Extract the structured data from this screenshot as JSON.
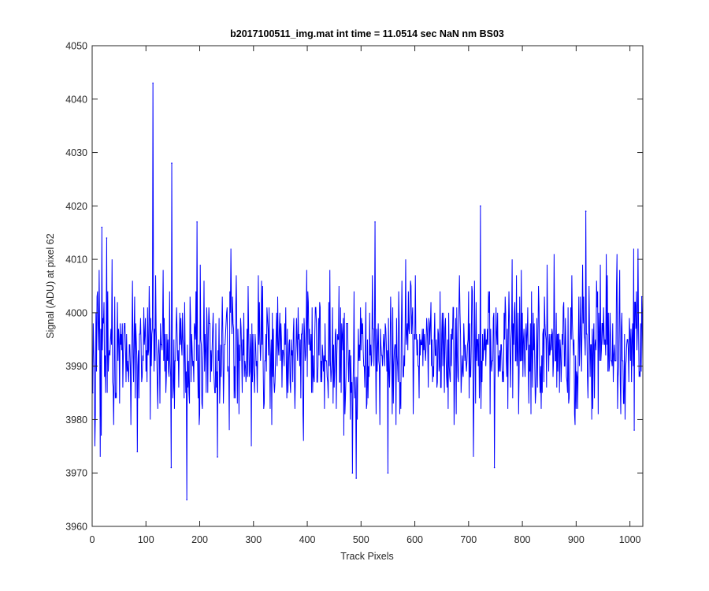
{
  "chart_data": {
    "type": "line",
    "title": "b2017100511_img.mat int time = 11.0514 sec  NaN nm BS03",
    "xlabel": "Track Pixels",
    "ylabel": "Signal (ADU) at pixel 62",
    "xlim": [
      0,
      1024
    ],
    "ylim": [
      3960,
      4050
    ],
    "xticks": [
      0,
      100,
      200,
      300,
      400,
      500,
      600,
      700,
      800,
      900,
      1000
    ],
    "yticks": [
      3960,
      3970,
      3980,
      3990,
      4000,
      4010,
      4020,
      4030,
      4040,
      4050
    ],
    "grid": false,
    "legend": "none",
    "series": [
      {
        "color": "#0000ff",
        "n_points": 1024,
        "baseline": 3993.5,
        "noise_sd": 6.5,
        "notable_points": [
          {
            "x": 1,
            "y": 3985
          },
          {
            "x": 18,
            "y": 4016
          },
          {
            "x": 27,
            "y": 4014
          },
          {
            "x": 84,
            "y": 3974
          },
          {
            "x": 113,
            "y": 4043
          },
          {
            "x": 148,
            "y": 4028
          },
          {
            "x": 147,
            "y": 3971
          },
          {
            "x": 176,
            "y": 3965
          },
          {
            "x": 195,
            "y": 4017
          },
          {
            "x": 233,
            "y": 3973
          },
          {
            "x": 484,
            "y": 3970
          },
          {
            "x": 491,
            "y": 3969
          },
          {
            "x": 526,
            "y": 4017
          },
          {
            "x": 550,
            "y": 3970
          },
          {
            "x": 722,
            "y": 4020
          },
          {
            "x": 748,
            "y": 3971
          },
          {
            "x": 918,
            "y": 4019
          },
          {
            "x": 1008,
            "y": 3978
          },
          {
            "x": 1022,
            "y": 4003
          }
        ]
      }
    ]
  }
}
